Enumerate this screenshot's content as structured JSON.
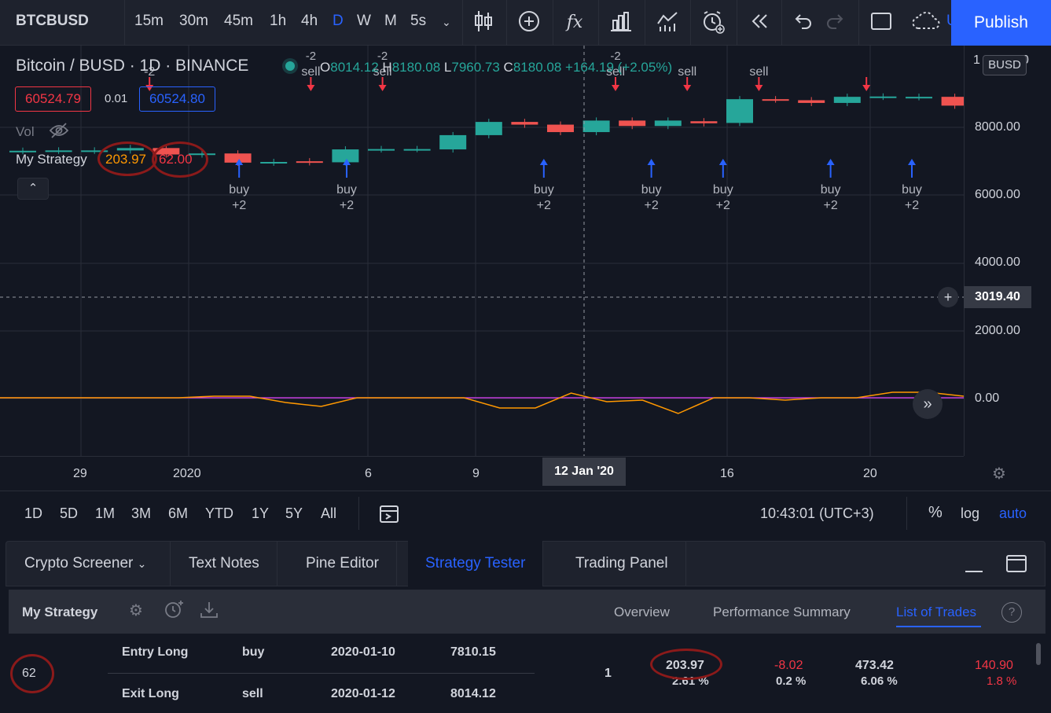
{
  "toolbar": {
    "symbol": "BTCBUSD",
    "timeframes": [
      "15m",
      "30m",
      "45m",
      "1h",
      "4h",
      "D",
      "W",
      "M",
      "5s"
    ],
    "active_timeframe": "D",
    "fx_label": "fx",
    "publish_label": "Publish",
    "overflow_char": "U"
  },
  "legend": {
    "title": "Bitcoin / BUSD · 1D · BINANCE",
    "ohlc": {
      "o_k": "O",
      "o": "8014.12",
      "h_k": "H",
      "h": "8180.08",
      "l_k": "L",
      "l": "7960.73",
      "c_k": "C",
      "c": "8180.08",
      "change": "+164.19 (+2.05%)"
    },
    "sell_price": "60524.79",
    "spread": "0.01",
    "buy_price": "60524.80",
    "vol_label": "Vol",
    "strategy_label": "My Strategy",
    "strategy_v1": "203.97",
    "strategy_v2": "62.00"
  },
  "price_axis": {
    "labels": [
      "8000.00",
      "6000.00",
      "4000.00",
      "2000.00",
      "0.00"
    ],
    "currency_tag": "BUSD",
    "top_partial": "1",
    "top_partial_right": "0",
    "cursor_price": "3019.40"
  },
  "time_axis": {
    "labels": [
      "29",
      "2020",
      "6",
      "9",
      "16",
      "20"
    ],
    "cursor_date": "12 Jan '20"
  },
  "chart_data": {
    "type": "candlestick",
    "candles": [
      {
        "o": 7300,
        "c": 7310
      },
      {
        "o": 7310,
        "c": 7320
      },
      {
        "o": 7310,
        "c": 7320
      },
      {
        "o": 7320,
        "c": 7390
      },
      {
        "o": 7390,
        "c": 7200
      },
      {
        "o": 7200,
        "c": 7230
      },
      {
        "o": 7230,
        "c": 6960
      },
      {
        "o": 6960,
        "c": 6980
      },
      {
        "o": 7000,
        "c": 6970
      },
      {
        "o": 6970,
        "c": 7350
      },
      {
        "o": 7350,
        "c": 7360
      },
      {
        "o": 7360,
        "c": 7360
      },
      {
        "o": 7350,
        "c": 7770
      },
      {
        "o": 7770,
        "c": 8160
      },
      {
        "o": 8160,
        "c": 8080
      },
      {
        "o": 8080,
        "c": 7860
      },
      {
        "o": 7860,
        "c": 8200
      },
      {
        "o": 8200,
        "c": 8040
      },
      {
        "o": 8040,
        "c": 8200
      },
      {
        "o": 8180,
        "c": 8120
      },
      {
        "o": 8130,
        "c": 8830
      },
      {
        "o": 8830,
        "c": 8820
      },
      {
        "o": 8800,
        "c": 8720
      },
      {
        "o": 8720,
        "c": 8900
      },
      {
        "o": 8900,
        "c": 8910
      },
      {
        "o": 8890,
        "c": 8900
      },
      {
        "o": 8900,
        "c": 8640
      },
      {
        "o": 8640,
        "c": 8620
      },
      {
        "o": 8620,
        "c": 8740
      },
      {
        "o": 8740,
        "c": 8700
      }
    ],
    "signals": [
      {
        "type": "sell",
        "text": "-2",
        "i": 4
      },
      {
        "type": "buy",
        "text": "buy",
        "qty": "+2",
        "i": 9
      },
      {
        "type": "sell",
        "text": "sell",
        "qty": "-2",
        "i": 13
      },
      {
        "type": "buy",
        "text": "buy",
        "qty": "+2",
        "i": 15
      },
      {
        "type": "sell",
        "text": "sell",
        "qty": "-2",
        "i": 17
      },
      {
        "type": "buy",
        "text": "buy",
        "qty": "+2",
        "i": 26
      },
      {
        "type": "sell",
        "text": "sell",
        "qty": "-2",
        "i": 30
      },
      {
        "type": "buy",
        "text": "buy",
        "qty": "+2",
        "i": 32
      },
      {
        "type": "sell",
        "text": "sell",
        "qty": "",
        "i": 34
      },
      {
        "type": "buy",
        "text": "buy",
        "qty": "+2",
        "i": 36
      },
      {
        "type": "sell",
        "text": "sell",
        "qty": "",
        "i": 38
      },
      {
        "type": "buy",
        "text": "buy",
        "qty": "+2",
        "i": 42
      },
      {
        "type": "sell",
        "text": "",
        "qty": "",
        "i": 44
      },
      {
        "type": "buy",
        "text": "buy",
        "qty": "+2",
        "i": 48
      }
    ],
    "oscillator": [
      0,
      0,
      0,
      0,
      0,
      0,
      20,
      20,
      -60,
      -110,
      0,
      0,
      0,
      0,
      -130,
      -130,
      60,
      -50,
      -30,
      -200,
      0,
      0,
      -30,
      0,
      0,
      70,
      70,
      20
    ],
    "signal_line": 0
  },
  "ranges": [
    "1D",
    "5D",
    "1M",
    "3M",
    "6M",
    "YTD",
    "1Y",
    "5Y",
    "All"
  ],
  "status": {
    "clock": "10:43:01 (UTC+3)",
    "pct": "%",
    "log": "log",
    "auto": "auto"
  },
  "bottom_tabs": [
    "Crypto Screener",
    "Text Notes",
    "Pine Editor",
    "Strategy Tester",
    "Trading Panel"
  ],
  "active_bottom_tab": "Strategy Tester",
  "strategy_panel": {
    "name": "My Strategy",
    "tabs": [
      "Overview",
      "Performance Summary",
      "List of Trades"
    ],
    "active_tab": "List of Trades",
    "help": "?"
  },
  "trade": {
    "number": "62",
    "entry": {
      "type": "Entry Long",
      "signal": "buy",
      "date": "2020-01-10",
      "price": "7810.15"
    },
    "exit": {
      "type": "Exit Long",
      "signal": "sell",
      "date": "2020-01-12",
      "price": "8014.12"
    },
    "contracts": "1",
    "profit": "203.97",
    "profit_pct": "2.61 %",
    "runup": "-8.02",
    "runup_pct": "0.2 %",
    "drawdown": "473.42",
    "drawdown_pct": "6.06 %",
    "cum": "140.90",
    "cum_pct": "1.8 %"
  }
}
